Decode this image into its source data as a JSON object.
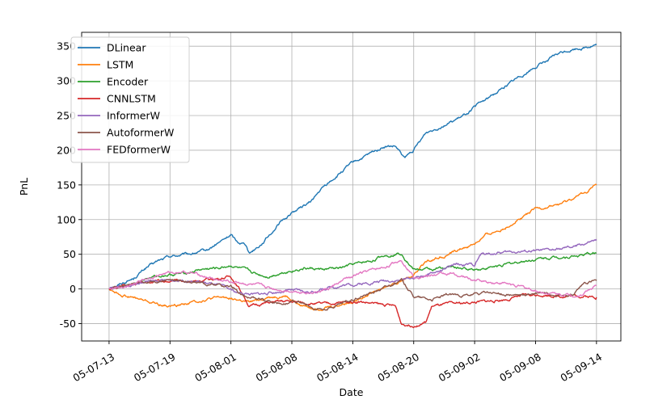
{
  "chart_data": {
    "type": "line",
    "title": "",
    "xlabel": "Date",
    "ylabel": "PnL",
    "ylim": [
      -75,
      370
    ],
    "grid": true,
    "legend_position": "upper-left",
    "x_ticks": [
      "05-07-13",
      "05-07-19",
      "05-08-01",
      "05-08-08",
      "05-08-14",
      "05-08-20",
      "05-09-02",
      "05-09-08",
      "05-09-14"
    ],
    "y_ticks": [
      -50,
      0,
      50,
      100,
      150,
      200,
      250,
      300,
      350
    ],
    "series": [
      {
        "name": "DLinear",
        "color": "#1f77b4",
        "points": [
          [
            0,
            0
          ],
          [
            0.2,
            8
          ],
          [
            0.4,
            15
          ],
          [
            0.6,
            30
          ],
          [
            0.8,
            40
          ],
          [
            1.0,
            47
          ],
          [
            1.3,
            50
          ],
          [
            1.6,
            55
          ],
          [
            1.9,
            72
          ],
          [
            2.0,
            78
          ],
          [
            2.1,
            68
          ],
          [
            2.25,
            65
          ],
          [
            2.3,
            52
          ],
          [
            2.5,
            65
          ],
          [
            2.8,
            95
          ],
          [
            3.0,
            110
          ],
          [
            3.3,
            125
          ],
          [
            3.5,
            145
          ],
          [
            3.7,
            160
          ],
          [
            4.0,
            182
          ],
          [
            4.3,
            195
          ],
          [
            4.5,
            205
          ],
          [
            4.7,
            205
          ],
          [
            4.85,
            188
          ],
          [
            5.0,
            200
          ],
          [
            5.2,
            225
          ],
          [
            5.5,
            237
          ],
          [
            5.8,
            248
          ],
          [
            6.0,
            262
          ],
          [
            6.3,
            280
          ],
          [
            6.6,
            298
          ],
          [
            6.8,
            310
          ],
          [
            7.1,
            325
          ],
          [
            7.4,
            340
          ],
          [
            7.6,
            345
          ],
          [
            8.0,
            352
          ]
        ]
      },
      {
        "name": "LSTM",
        "color": "#ff7f0e",
        "points": [
          [
            0,
            0
          ],
          [
            0.2,
            -8
          ],
          [
            0.5,
            -15
          ],
          [
            0.8,
            -22
          ],
          [
            1.0,
            -25
          ],
          [
            1.3,
            -20
          ],
          [
            1.6,
            -15
          ],
          [
            1.9,
            -12
          ],
          [
            2.0,
            -13
          ],
          [
            2.3,
            -20
          ],
          [
            2.6,
            -12
          ],
          [
            2.9,
            -10
          ],
          [
            3.1,
            -22
          ],
          [
            3.4,
            -28
          ],
          [
            3.7,
            -25
          ],
          [
            4.0,
            -18
          ],
          [
            4.3,
            -5
          ],
          [
            4.6,
            5
          ],
          [
            4.8,
            12
          ],
          [
            5.0,
            20
          ],
          [
            5.2,
            40
          ],
          [
            5.5,
            48
          ],
          [
            5.8,
            58
          ],
          [
            6.0,
            65
          ],
          [
            6.2,
            78
          ],
          [
            6.5,
            88
          ],
          [
            6.8,
            105
          ],
          [
            7.0,
            115
          ],
          [
            7.3,
            120
          ],
          [
            7.5,
            125
          ],
          [
            7.8,
            138
          ],
          [
            8.0,
            150
          ]
        ]
      },
      {
        "name": "Encoder",
        "color": "#2ca02c",
        "points": [
          [
            0,
            0
          ],
          [
            0.3,
            5
          ],
          [
            0.6,
            15
          ],
          [
            0.9,
            20
          ],
          [
            1.2,
            22
          ],
          [
            1.5,
            28
          ],
          [
            1.8,
            30
          ],
          [
            2.0,
            34
          ],
          [
            2.2,
            28
          ],
          [
            2.4,
            22
          ],
          [
            2.6,
            18
          ],
          [
            2.9,
            25
          ],
          [
            3.2,
            30
          ],
          [
            3.5,
            28
          ],
          [
            3.8,
            30
          ],
          [
            4.0,
            35
          ],
          [
            4.3,
            40
          ],
          [
            4.5,
            48
          ],
          [
            4.8,
            52
          ],
          [
            5.0,
            28
          ],
          [
            5.3,
            28
          ],
          [
            5.6,
            32
          ],
          [
            5.9,
            28
          ],
          [
            6.2,
            30
          ],
          [
            6.5,
            35
          ],
          [
            6.8,
            40
          ],
          [
            7.1,
            44
          ],
          [
            7.4,
            46
          ],
          [
            7.7,
            48
          ],
          [
            8.0,
            52
          ]
        ]
      },
      {
        "name": "CNNLSTM",
        "color": "#d62728",
        "points": [
          [
            0,
            0
          ],
          [
            0.3,
            5
          ],
          [
            0.6,
            10
          ],
          [
            0.9,
            12
          ],
          [
            1.2,
            10
          ],
          [
            1.5,
            12
          ],
          [
            1.8,
            15
          ],
          [
            2.0,
            18
          ],
          [
            2.1,
            5
          ],
          [
            2.2,
            -8
          ],
          [
            2.3,
            -25
          ],
          [
            2.6,
            -20
          ],
          [
            2.9,
            -18
          ],
          [
            3.2,
            -20
          ],
          [
            3.5,
            -22
          ],
          [
            3.8,
            -20
          ],
          [
            4.1,
            -18
          ],
          [
            4.4,
            -22
          ],
          [
            4.7,
            -25
          ],
          [
            4.8,
            -50
          ],
          [
            5.0,
            -52
          ],
          [
            5.2,
            -48
          ],
          [
            5.3,
            -25
          ],
          [
            5.6,
            -22
          ],
          [
            5.9,
            -20
          ],
          [
            6.2,
            -18
          ],
          [
            6.5,
            -15
          ],
          [
            6.8,
            -10
          ],
          [
            7.1,
            -8
          ],
          [
            7.4,
            -10
          ],
          [
            7.7,
            -10
          ],
          [
            8.0,
            -12
          ]
        ]
      },
      {
        "name": "InformerW",
        "color": "#9467bd",
        "points": [
          [
            0,
            0
          ],
          [
            0.3,
            5
          ],
          [
            0.6,
            10
          ],
          [
            0.9,
            12
          ],
          [
            1.2,
            13
          ],
          [
            1.5,
            10
          ],
          [
            1.8,
            5
          ],
          [
            2.1,
            -5
          ],
          [
            2.4,
            -8
          ],
          [
            2.7,
            -5
          ],
          [
            3.0,
            -2
          ],
          [
            3.3,
            -5
          ],
          [
            3.6,
            2
          ],
          [
            3.9,
            6
          ],
          [
            4.2,
            8
          ],
          [
            4.5,
            12
          ],
          [
            4.8,
            13
          ],
          [
            5.1,
            18
          ],
          [
            5.4,
            25
          ],
          [
            5.7,
            35
          ],
          [
            6.0,
            35
          ],
          [
            6.1,
            50
          ],
          [
            6.4,
            52
          ],
          [
            6.7,
            54
          ],
          [
            7.0,
            55
          ],
          [
            7.3,
            56
          ],
          [
            7.6,
            60
          ],
          [
            7.8,
            65
          ],
          [
            8.0,
            70
          ]
        ]
      },
      {
        "name": "AutoformerW",
        "color": "#8c564b",
        "points": [
          [
            0,
            0
          ],
          [
            0.3,
            5
          ],
          [
            0.6,
            10
          ],
          [
            0.9,
            12
          ],
          [
            1.2,
            12
          ],
          [
            1.5,
            8
          ],
          [
            1.8,
            5
          ],
          [
            2.0,
            3
          ],
          [
            2.2,
            -10
          ],
          [
            2.5,
            -15
          ],
          [
            2.8,
            -20
          ],
          [
            3.1,
            -18
          ],
          [
            3.4,
            -30
          ],
          [
            3.7,
            -25
          ],
          [
            4.0,
            -15
          ],
          [
            4.3,
            -5
          ],
          [
            4.5,
            2
          ],
          [
            4.8,
            12
          ],
          [
            5.0,
            -10
          ],
          [
            5.3,
            -15
          ],
          [
            5.6,
            -8
          ],
          [
            5.9,
            -10
          ],
          [
            6.2,
            -5
          ],
          [
            6.5,
            -8
          ],
          [
            6.8,
            -10
          ],
          [
            7.1,
            -5
          ],
          [
            7.4,
            -8
          ],
          [
            7.6,
            -10
          ],
          [
            7.8,
            8
          ],
          [
            8.0,
            12
          ]
        ]
      },
      {
        "name": "FEDformerW",
        "color": "#e377c2",
        "points": [
          [
            0,
            0
          ],
          [
            0.3,
            5
          ],
          [
            0.6,
            15
          ],
          [
            0.9,
            22
          ],
          [
            1.2,
            25
          ],
          [
            1.5,
            20
          ],
          [
            1.8,
            12
          ],
          [
            2.1,
            10
          ],
          [
            2.4,
            5
          ],
          [
            2.7,
            0
          ],
          [
            3.0,
            -3
          ],
          [
            3.3,
            -5
          ],
          [
            3.6,
            0
          ],
          [
            3.9,
            15
          ],
          [
            4.2,
            25
          ],
          [
            4.5,
            30
          ],
          [
            4.7,
            38
          ],
          [
            4.8,
            42
          ],
          [
            5.0,
            18
          ],
          [
            5.3,
            20
          ],
          [
            5.6,
            22
          ],
          [
            5.9,
            15
          ],
          [
            6.2,
            10
          ],
          [
            6.5,
            8
          ],
          [
            6.8,
            2
          ],
          [
            7.1,
            -5
          ],
          [
            7.4,
            -8
          ],
          [
            7.7,
            -10
          ],
          [
            8.0,
            5
          ]
        ]
      }
    ]
  }
}
